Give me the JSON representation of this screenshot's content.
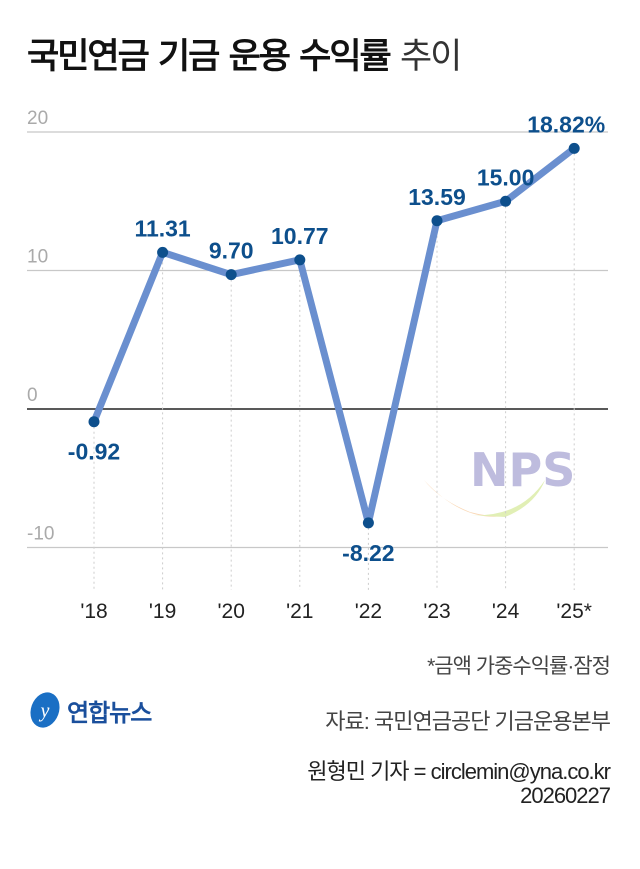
{
  "title": {
    "bold": "국민연금 기금 운용 수익률",
    "light": "추이"
  },
  "chart_data": {
    "type": "line",
    "categories": [
      "'18",
      "'19",
      "'20",
      "'21",
      "'22",
      "'23",
      "'24",
      "'25*"
    ],
    "values": [
      -0.92,
      11.31,
      9.7,
      10.77,
      -8.22,
      13.59,
      15.0,
      18.82
    ],
    "data_labels": [
      "-0.92",
      "11.31",
      "9.70",
      "10.77",
      "-8.22",
      "13.59",
      "15.00",
      "18.82%"
    ],
    "yticks": [
      "20",
      "10",
      "0",
      "-10"
    ],
    "ytick_values": [
      20,
      10,
      0,
      -10
    ],
    "ylim": [
      -12,
      21
    ],
    "grid": true,
    "line_color": "#6a8fcf",
    "marker_color": "#0d4f8c",
    "label_color": "#0d4f8c"
  },
  "watermark": "NPS",
  "note": "*금액 가중수익률·잠정",
  "source": "자료: 국민연금공단 기금운용본부",
  "reporter": "원형민 기자 = circlemin@yna.co.kr",
  "date": "20260227",
  "logo": {
    "text": "연합뉴스",
    "color": "#1a4f9c"
  }
}
